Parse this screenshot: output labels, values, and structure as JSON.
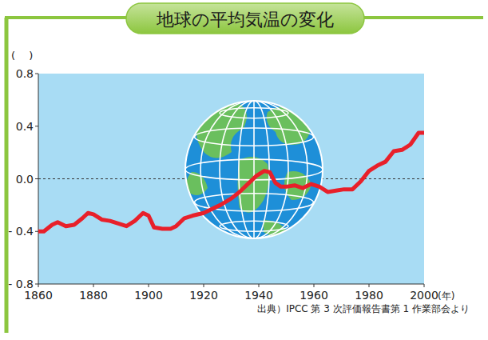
{
  "chart_data": {
    "type": "line",
    "title": "地球の平均気温の変化",
    "y_label": "(　 )",
    "x_label": "(年)",
    "source": "出典）IPCC 第 3 次評価報告書第 1 作業部会より",
    "color": "#e8202a",
    "grid": false,
    "xlim": [
      1860,
      2000
    ],
    "xticks": [
      1860,
      1880,
      1900,
      1920,
      1940,
      1960,
      1980,
      2000
    ],
    "ylim": [
      -0.8,
      0.8
    ],
    "yticks": [
      {
        "value": -0.8,
        "label": "- 0.8"
      },
      {
        "value": -0.4,
        "label": "- 0.4"
      },
      {
        "value": 0,
        "label": "0.0"
      },
      0.4,
      0.8
    ],
    "x": [
      1860,
      1862,
      1865,
      1867,
      1870,
      1873,
      1876,
      1878,
      1880,
      1883,
      1886,
      1889,
      1892,
      1895,
      1898,
      1900,
      1902,
      1905,
      1908,
      1910,
      1913,
      1916,
      1920,
      1923,
      1926,
      1930,
      1933,
      1936,
      1939,
      1942,
      1944,
      1946,
      1948,
      1950,
      1953,
      1956,
      1959,
      1962,
      1965,
      1968,
      1971,
      1974,
      1977,
      1980,
      1983,
      1986,
      1989,
      1992,
      1995,
      1998,
      2000
    ],
    "values": [
      -0.4,
      -0.4,
      -0.35,
      -0.33,
      -0.36,
      -0.35,
      -0.3,
      -0.26,
      -0.27,
      -0.31,
      -0.32,
      -0.34,
      -0.36,
      -0.32,
      -0.26,
      -0.28,
      -0.37,
      -0.38,
      -0.38,
      -0.36,
      -0.3,
      -0.28,
      -0.26,
      -0.23,
      -0.2,
      -0.15,
      -0.1,
      -0.04,
      0.02,
      0.06,
      0.05,
      -0.03,
      -0.06,
      -0.06,
      -0.05,
      -0.07,
      -0.04,
      -0.06,
      -0.1,
      -0.09,
      -0.08,
      -0.08,
      -0.02,
      0.06,
      0.1,
      0.13,
      0.21,
      0.22,
      0.26,
      0.35,
      0.35
    ]
  }
}
